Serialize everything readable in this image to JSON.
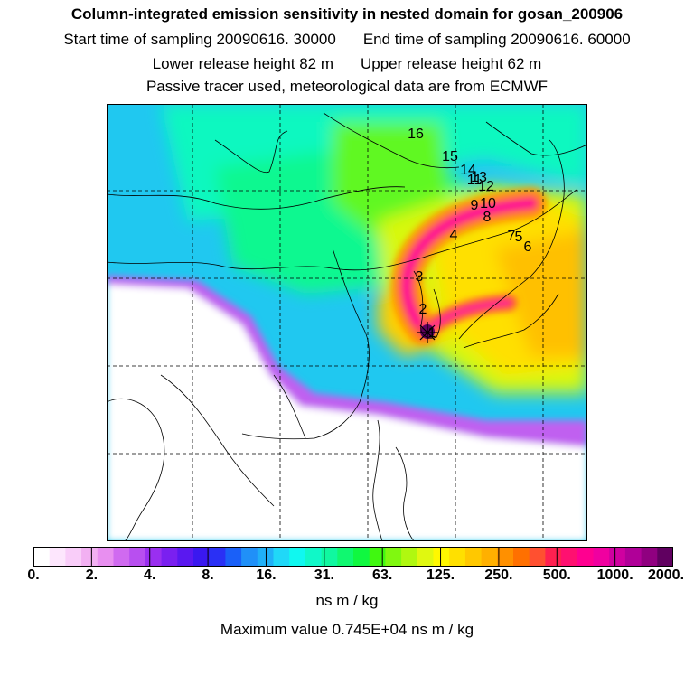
{
  "header": {
    "title": "Column-integrated emission sensitivity in nested domain for gosan_200906",
    "start_label": "Start time of sampling 20090616. 30000",
    "end_label": "End time of sampling 20090616. 60000",
    "lower_label": "Lower release height   82 m",
    "upper_label": "Upper release height   62 m",
    "tracer_note": "Passive tracer used, meteorological data are from ECMWF"
  },
  "trajectory_labels": [
    "1",
    "2",
    "3",
    "4",
    "5",
    "6",
    "7",
    "8",
    "9",
    "10",
    "11",
    "12",
    "13",
    "14",
    "15",
    "16"
  ],
  "colorbar": {
    "tick_labels": [
      "0.",
      "2.",
      "4.",
      "8.",
      "16.",
      "31.",
      "63.",
      "125.",
      "250.",
      "500.",
      "1000.",
      "2000."
    ],
    "unit": "ns m / kg",
    "colors": [
      "#ffffff",
      "#fde6fd",
      "#f9cdf9",
      "#f2b0f2",
      "#e88ff0",
      "#d06af0",
      "#b84ff0",
      "#9a2ff0",
      "#7a20f0",
      "#5a18f0",
      "#3a18f0",
      "#2a30f5",
      "#1a60f8",
      "#2090f8",
      "#20b0f8",
      "#20d8f8",
      "#10f8f0",
      "#10f8c8",
      "#10f8a0",
      "#10f870",
      "#10f840",
      "#40f810",
      "#80f810",
      "#b0f810",
      "#e0f810",
      "#fff800",
      "#ffe000",
      "#ffc800",
      "#ffb000",
      "#ff9000",
      "#ff7000",
      "#ff5030",
      "#ff2050",
      "#ff1070",
      "#ff0090",
      "#f000a0",
      "#d000a0",
      "#b00098",
      "#900080",
      "#600060"
    ]
  },
  "max_value_label": "Maximum value  0.745E+04 ns m / kg"
}
